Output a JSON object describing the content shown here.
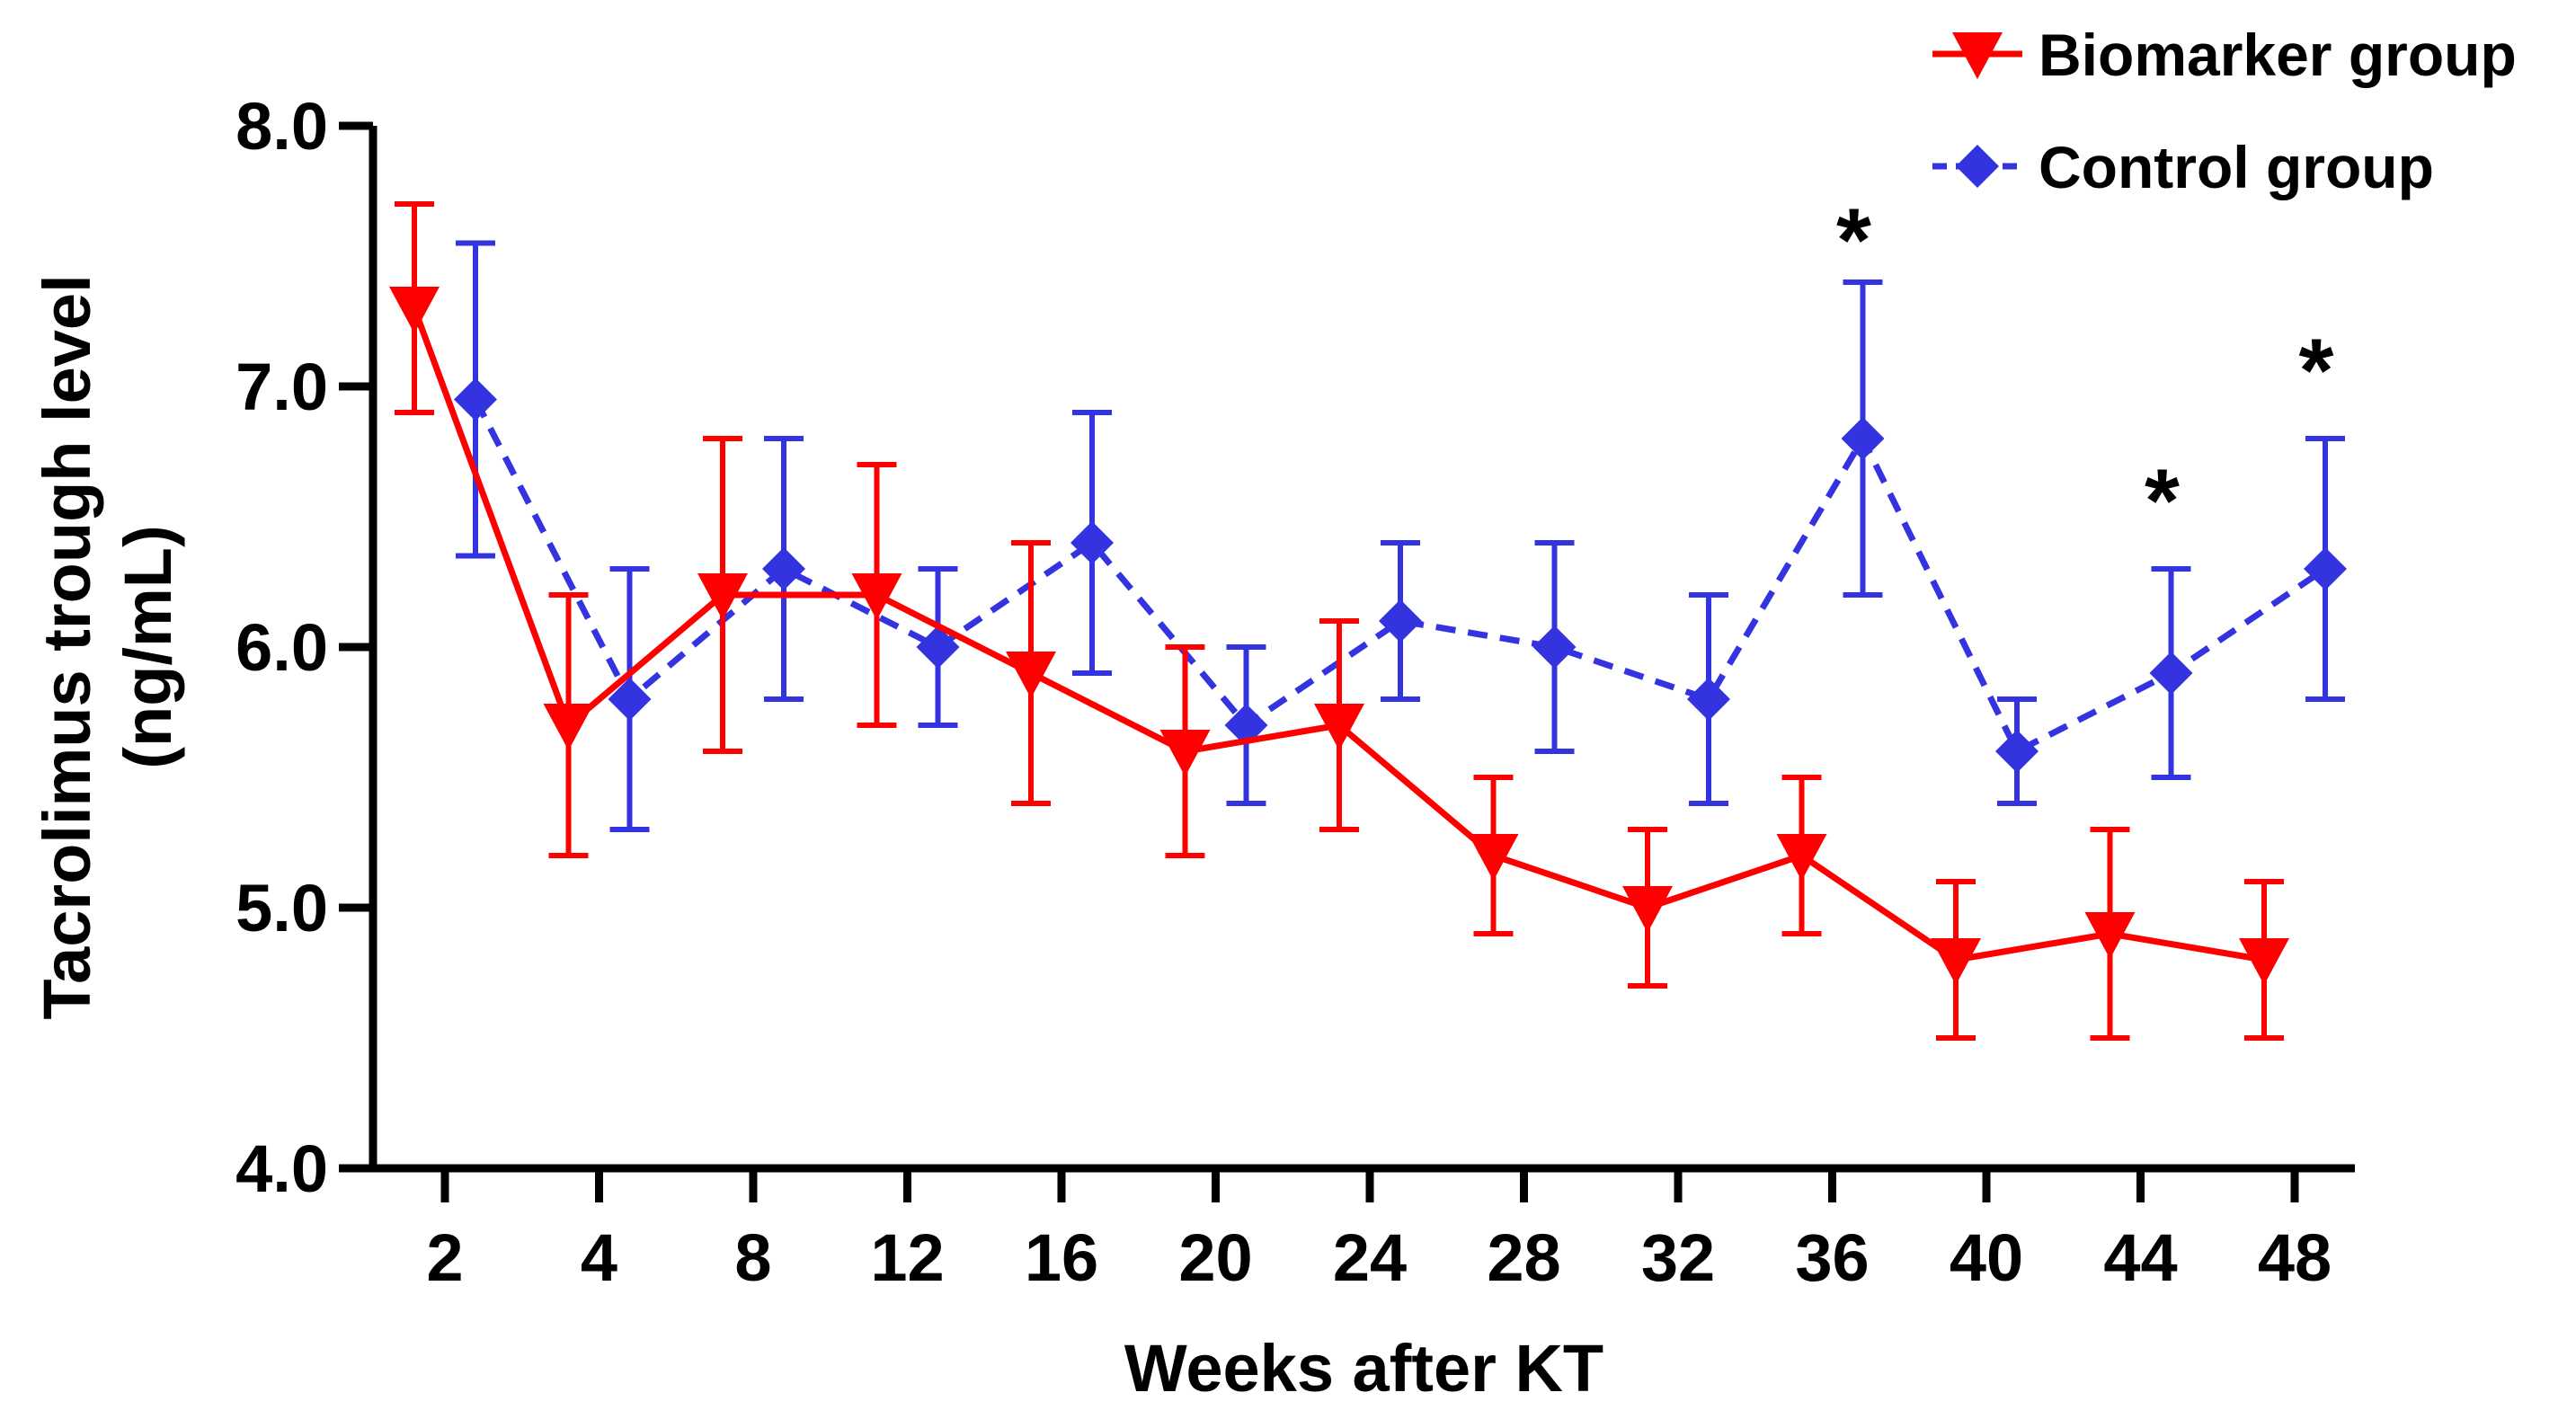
{
  "chart_data": {
    "type": "line",
    "title": "",
    "xlabel": "Weeks after KT",
    "ylabel_lines": [
      "Tacrolimus trough level",
      "(ng/mL)"
    ],
    "categories": [
      "2",
      "4",
      "8",
      "12",
      "16",
      "20",
      "24",
      "28",
      "32",
      "36",
      "40",
      "44",
      "48"
    ],
    "y_ticks": [
      "4.0",
      "5.0",
      "6.0",
      "7.0",
      "8.0"
    ],
    "ylim": [
      4.0,
      8.0
    ],
    "grid": false,
    "legend_position": "top-right",
    "series": [
      {
        "name": "Biomarker group",
        "color": "#ff0000",
        "line_style": "solid",
        "marker": "triangle-down",
        "values": [
          7.3,
          5.7,
          6.2,
          6.2,
          5.9,
          5.6,
          5.7,
          5.2,
          5.0,
          5.2,
          4.8,
          4.9,
          4.8
        ],
        "err_low": [
          6.9,
          5.2,
          5.6,
          5.7,
          5.4,
          5.2,
          5.3,
          4.9,
          4.7,
          4.9,
          4.5,
          4.5,
          4.5
        ],
        "err_high": [
          7.7,
          6.2,
          6.8,
          6.7,
          6.4,
          6.0,
          6.1,
          5.5,
          5.3,
          5.5,
          5.1,
          5.3,
          5.1
        ]
      },
      {
        "name": "Control group",
        "color": "#3333e0",
        "line_style": "dashed",
        "marker": "diamond",
        "values": [
          6.95,
          5.8,
          6.3,
          6.0,
          6.4,
          5.7,
          6.1,
          6.0,
          5.8,
          6.8,
          5.6,
          5.9,
          6.3
        ],
        "err_low": [
          6.35,
          5.3,
          5.8,
          5.7,
          5.9,
          5.4,
          5.8,
          5.6,
          5.4,
          6.2,
          5.4,
          5.5,
          5.8
        ],
        "err_high": [
          7.55,
          6.3,
          6.8,
          6.3,
          6.9,
          6.0,
          6.4,
          6.4,
          6.2,
          7.4,
          5.8,
          6.3,
          6.8
        ]
      }
    ],
    "annotations": [
      {
        "text": "*",
        "category": "36",
        "y": 7.65
      },
      {
        "text": "*",
        "category": "44",
        "y": 6.65
      },
      {
        "text": "*",
        "category": "48",
        "y": 7.15
      }
    ]
  }
}
